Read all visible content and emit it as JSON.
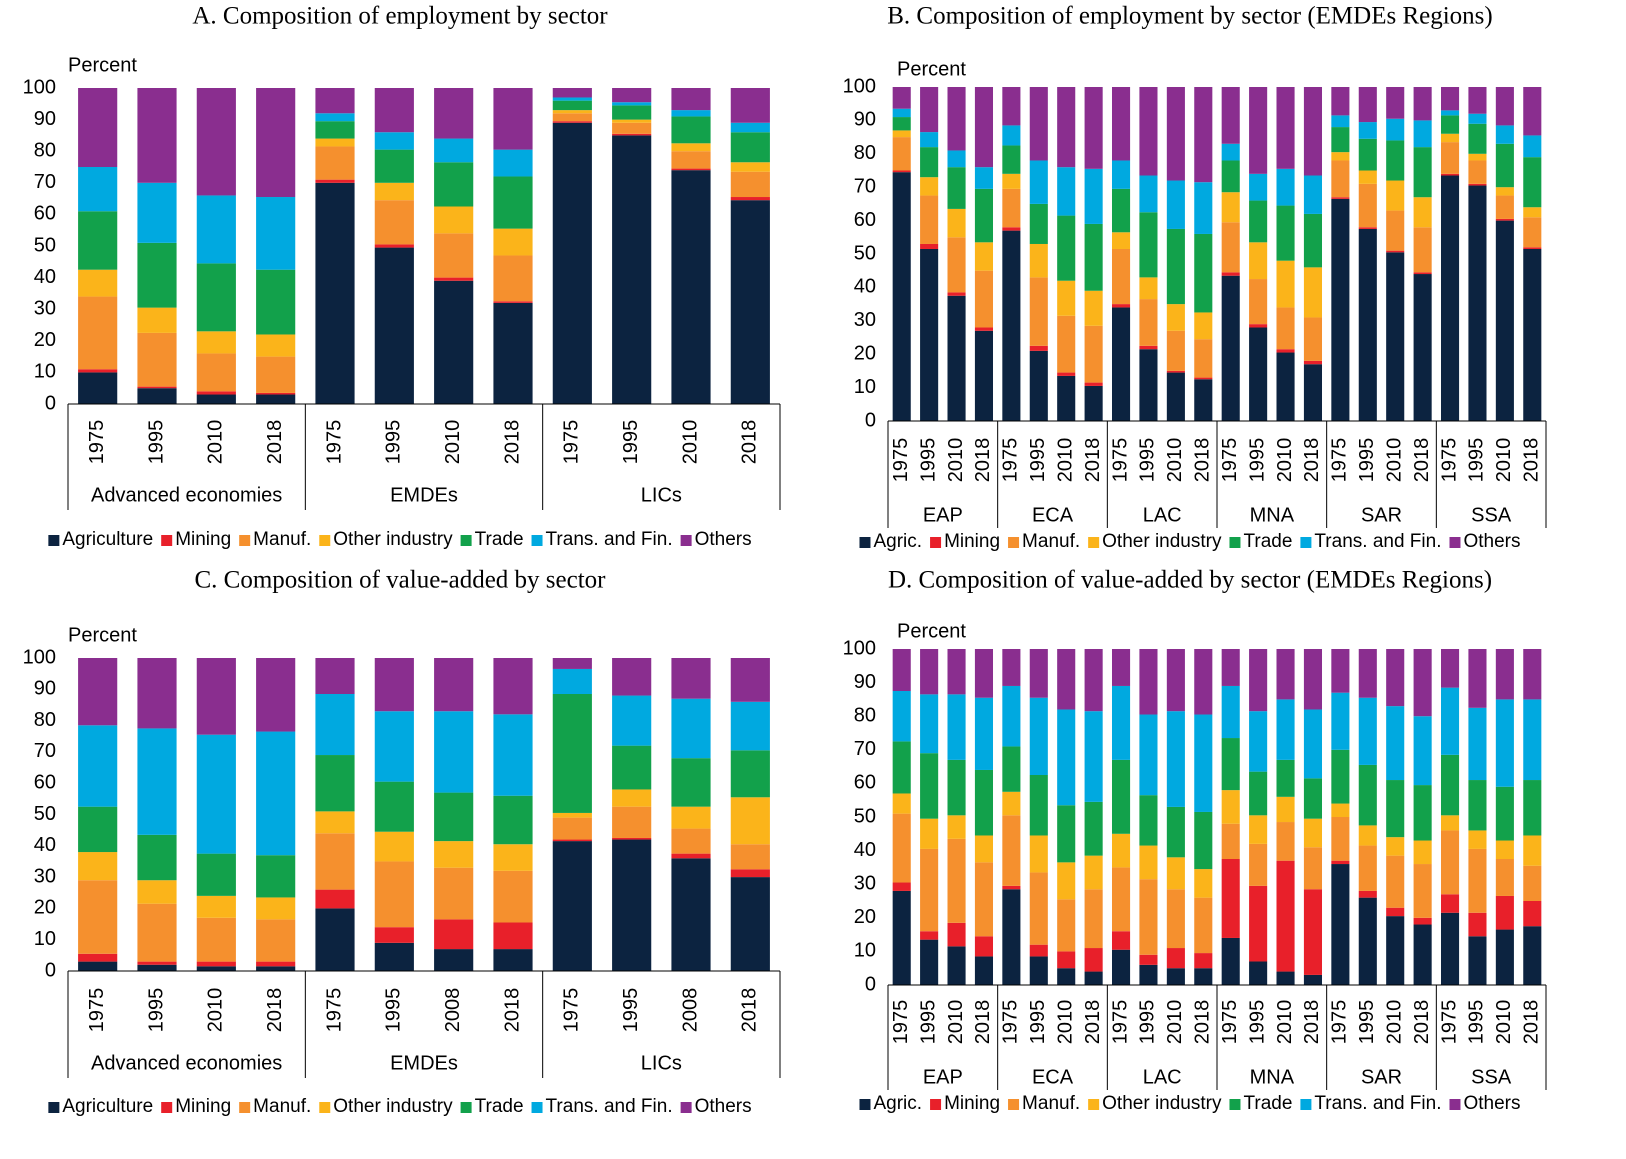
{
  "chart_data": [
    {
      "type": "bar",
      "stacked": true,
      "title": "A. Composition of employment by sector",
      "ylabel": "Percent",
      "categories": [
        "1975",
        "1995",
        "2010",
        "2018",
        "1975",
        "1995",
        "2010",
        "2018",
        "1975",
        "1995",
        "2010",
        "2018"
      ],
      "group_labels": [
        "Advanced economies",
        "EMDEs",
        "LICs"
      ],
      "ylim": [
        0,
        100
      ],
      "yticks": [
        0,
        10,
        20,
        30,
        40,
        50,
        60,
        70,
        80,
        90,
        100
      ],
      "series": [
        {
          "name": "Agriculture",
          "color": "#0c2340",
          "values": [
            10,
            5,
            3,
            3,
            70,
            49.5,
            39,
            32,
            89,
            85,
            74,
            64.5
          ]
        },
        {
          "name": "Mining",
          "color": "#e8202a",
          "values": [
            1,
            0.5,
            1,
            0.5,
            1,
            1,
            1,
            0.5,
            0.5,
            0.5,
            0.5,
            1
          ]
        },
        {
          "name": "Manuf.",
          "color": "#f5902e",
          "values": [
            23,
            17,
            12,
            11.5,
            10.5,
            14,
            14,
            14.5,
            2.5,
            3.5,
            5.5,
            8
          ]
        },
        {
          "name": "Other industry",
          "color": "#fbb41a",
          "values": [
            8.5,
            8,
            7,
            7,
            2.5,
            5.5,
            8.5,
            8.5,
            1,
            1,
            2.5,
            3
          ]
        },
        {
          "name": "Trade",
          "color": "#12a14b",
          "values": [
            18.5,
            20.5,
            21.5,
            20.5,
            5.5,
            10.5,
            14,
            16.5,
            3,
            4.5,
            8.5,
            9.5
          ]
        },
        {
          "name": "Trans. and Fin.",
          "color": "#00a9e0",
          "values": [
            14,
            19,
            21.5,
            23,
            2.5,
            5.5,
            7.5,
            8.5,
            1,
            1,
            2,
            3
          ]
        },
        {
          "name": "Others",
          "color": "#8a2e8f",
          "values": [
            25,
            30,
            34,
            34.5,
            8,
            14,
            16,
            19.5,
            3,
            4.5,
            7,
            11
          ]
        }
      ]
    },
    {
      "type": "bar",
      "stacked": true,
      "title": "B. Composition of employment by sector (EMDEs Regions)",
      "ylabel": "Percent",
      "categories": [
        "1975",
        "1995",
        "2010",
        "2018",
        "1975",
        "1995",
        "2010",
        "2018",
        "1975",
        "1995",
        "2010",
        "2018",
        "1975",
        "1995",
        "2010",
        "2018",
        "1975",
        "1995",
        "2010",
        "2018",
        "1975",
        "1995",
        "2010",
        "2018"
      ],
      "group_labels": [
        "EAP",
        "ECA",
        "LAC",
        "MNA",
        "SAR",
        "SSA"
      ],
      "ylim": [
        0,
        100
      ],
      "yticks": [
        0,
        10,
        20,
        30,
        40,
        50,
        60,
        70,
        80,
        90,
        100
      ],
      "series": [
        {
          "name": "Agric.",
          "color": "#0c2340",
          "values": [
            74.5,
            51.5,
            37.5,
            27,
            57,
            21,
            13.5,
            10.5,
            34,
            21.5,
            14.5,
            12.5,
            43.5,
            28,
            20.5,
            17,
            66.5,
            57.5,
            50.5,
            44,
            73.5,
            70.5,
            60,
            51.5
          ]
        },
        {
          "name": "Mining",
          "color": "#e8202a",
          "values": [
            0.5,
            1.5,
            1,
            1,
            1,
            1.5,
            1,
            1,
            1,
            1,
            0.5,
            0.5,
            1,
            1,
            1,
            1,
            0.5,
            0.5,
            0.5,
            0.5,
            0.5,
            0.5,
            0.5,
            0.5
          ]
        },
        {
          "name": "Manuf.",
          "color": "#f5902e",
          "values": [
            10,
            14.5,
            16.5,
            17,
            11.5,
            20.5,
            17,
            17,
            16.5,
            14,
            12,
            11.5,
            15,
            13.5,
            12.5,
            13,
            11,
            13,
            12,
            13.5,
            9.5,
            7,
            7,
            9
          ]
        },
        {
          "name": "Other industry",
          "color": "#fbb41a",
          "values": [
            2,
            5.5,
            8.5,
            8.5,
            4.5,
            10,
            10.5,
            10.5,
            5,
            6.5,
            8,
            8,
            9,
            11,
            14,
            15,
            2.5,
            4,
            9,
            9,
            2.5,
            2,
            2.5,
            3
          ]
        },
        {
          "name": "Trade",
          "color": "#12a14b",
          "values": [
            4,
            9,
            12.5,
            16,
            8.5,
            12,
            19.5,
            20,
            13,
            19.5,
            22.5,
            23.5,
            9.5,
            12.5,
            16.5,
            16,
            7.5,
            9.5,
            12,
            15,
            5.5,
            9,
            13,
            15
          ]
        },
        {
          "name": "Trans. and Fin.",
          "color": "#00a9e0",
          "values": [
            2.5,
            4.5,
            5,
            6.5,
            6,
            13,
            14.5,
            16.5,
            8.5,
            11,
            14.5,
            15.5,
            5,
            8,
            11,
            11.5,
            3.5,
            5,
            6.5,
            8,
            1.5,
            3,
            5.5,
            6.5
          ]
        },
        {
          "name": "Others",
          "color": "#8a2e8f",
          "values": [
            6.5,
            13.5,
            19,
            24,
            11.5,
            22,
            24,
            24.5,
            22,
            26.5,
            28,
            28.5,
            17,
            26,
            24.5,
            26.5,
            8.5,
            10.5,
            9.5,
            10,
            7,
            8,
            11.5,
            14.5
          ]
        }
      ]
    },
    {
      "type": "bar",
      "stacked": true,
      "title": "C. Composition of value-added by sector",
      "ylabel": "Percent",
      "categories": [
        "1975",
        "1995",
        "2010",
        "2018",
        "1975",
        "1995",
        "2008",
        "2018",
        "1975",
        "1995",
        "2008",
        "2018"
      ],
      "group_labels": [
        "Advanced economies",
        "EMDEs",
        "LICs"
      ],
      "ylim": [
        0,
        100
      ],
      "yticks": [
        0,
        10,
        20,
        30,
        40,
        50,
        60,
        70,
        80,
        90,
        100
      ],
      "series": [
        {
          "name": "Agriculture",
          "color": "#0c2340",
          "values": [
            3,
            2,
            1.5,
            1.5,
            20,
            9,
            7,
            7,
            41.5,
            42,
            36,
            30
          ]
        },
        {
          "name": "Mining",
          "color": "#e8202a",
          "values": [
            2.5,
            1,
            1.5,
            1.5,
            6,
            5,
            9.5,
            8.5,
            0.5,
            0.5,
            1.5,
            2.5
          ]
        },
        {
          "name": "Manuf.",
          "color": "#f5902e",
          "values": [
            23.5,
            18.5,
            14,
            13.5,
            18,
            21,
            16.5,
            16.5,
            7,
            10,
            8,
            8
          ]
        },
        {
          "name": "Other industry",
          "color": "#fbb41a",
          "values": [
            9,
            7.5,
            7,
            7,
            7,
            9.5,
            8.5,
            8.5,
            1.5,
            5.5,
            7,
            15
          ]
        },
        {
          "name": "Trade",
          "color": "#12a14b",
          "values": [
            14.5,
            14.5,
            13.5,
            13.5,
            18,
            16,
            15.5,
            15.5,
            38,
            14,
            15.5,
            15
          ]
        },
        {
          "name": "Trans. and Fin.",
          "color": "#00a9e0",
          "values": [
            26,
            34,
            38,
            39.5,
            19.5,
            22.5,
            26,
            26,
            8,
            16,
            19,
            15.5
          ]
        },
        {
          "name": "Others",
          "color": "#8a2e8f",
          "values": [
            21.5,
            22.5,
            24.5,
            23.5,
            11.5,
            17,
            17,
            18,
            3.5,
            12,
            13,
            14
          ]
        }
      ]
    },
    {
      "type": "bar",
      "stacked": true,
      "title": "D. Composition of value-added by sector (EMDEs Regions)",
      "ylabel": "Percent",
      "categories": [
        "1975",
        "1995",
        "2010",
        "2018",
        "1975",
        "1995",
        "2010",
        "2018",
        "1975",
        "1995",
        "2010",
        "2018",
        "1975",
        "1995",
        "2010",
        "2018",
        "1975",
        "1995",
        "2010",
        "2018",
        "1975",
        "1995",
        "2010",
        "2018"
      ],
      "group_labels": [
        "EAP",
        "ECA",
        "LAC",
        "MNA",
        "SAR",
        "SSA"
      ],
      "ylim": [
        0,
        100
      ],
      "yticks": [
        0,
        10,
        20,
        30,
        40,
        50,
        60,
        70,
        80,
        90,
        100
      ],
      "series": [
        {
          "name": "Agric.",
          "color": "#0c2340",
          "values": [
            28,
            13.5,
            11.5,
            8.5,
            28.5,
            8.5,
            5,
            4,
            10.5,
            6,
            5,
            5,
            14,
            7,
            4,
            3,
            36,
            26,
            20.5,
            18,
            21.5,
            14.5,
            16.5,
            17.5
          ]
        },
        {
          "name": "Mining",
          "color": "#e8202a",
          "values": [
            2.5,
            2.5,
            7,
            6,
            1,
            3.5,
            5,
            7,
            5.5,
            3,
            6,
            4.5,
            23.5,
            22.5,
            33,
            25.5,
            1,
            2,
            2.5,
            2,
            5.5,
            7,
            10,
            7.5
          ]
        },
        {
          "name": "Manuf.",
          "color": "#f5902e",
          "values": [
            20.5,
            24.5,
            25,
            22,
            21,
            21.5,
            15.5,
            17.5,
            19,
            22.5,
            17.5,
            16.5,
            10.5,
            12.5,
            11.5,
            12.5,
            13,
            13.5,
            15.5,
            16,
            19,
            19,
            11,
            10.5
          ]
        },
        {
          "name": "Other industry",
          "color": "#fbb41a",
          "values": [
            6,
            9,
            7,
            8,
            7,
            11,
            11,
            10,
            10,
            10,
            9.5,
            8.5,
            10,
            8.5,
            7.5,
            8.5,
            4,
            6,
            5.5,
            7,
            4.5,
            5.5,
            5.5,
            9
          ]
        },
        {
          "name": "Trade",
          "color": "#12a14b",
          "values": [
            15.5,
            19.5,
            16.5,
            19.5,
            13.5,
            18,
            17,
            16,
            22,
            15,
            15,
            17,
            15.5,
            13,
            11,
            12,
            16,
            18,
            17,
            16.5,
            18,
            15,
            16,
            16.5
          ]
        },
        {
          "name": "Trans. and Fin.",
          "color": "#00a9e0",
          "values": [
            15,
            17.5,
            19.5,
            21.5,
            18,
            23,
            28.5,
            27,
            22,
            24,
            28.5,
            29,
            15.5,
            18,
            18,
            20.5,
            17,
            20,
            22,
            20.5,
            20,
            21.5,
            26,
            24
          ]
        },
        {
          "name": "Others",
          "color": "#8a2e8f",
          "values": [
            12.5,
            13.5,
            13.5,
            14.5,
            11,
            14.5,
            18,
            18.5,
            11,
            19.5,
            18.5,
            19.5,
            11,
            18.5,
            15,
            18,
            13,
            14.5,
            17,
            20,
            11.5,
            17.5,
            15,
            15
          ]
        }
      ]
    }
  ]
}
